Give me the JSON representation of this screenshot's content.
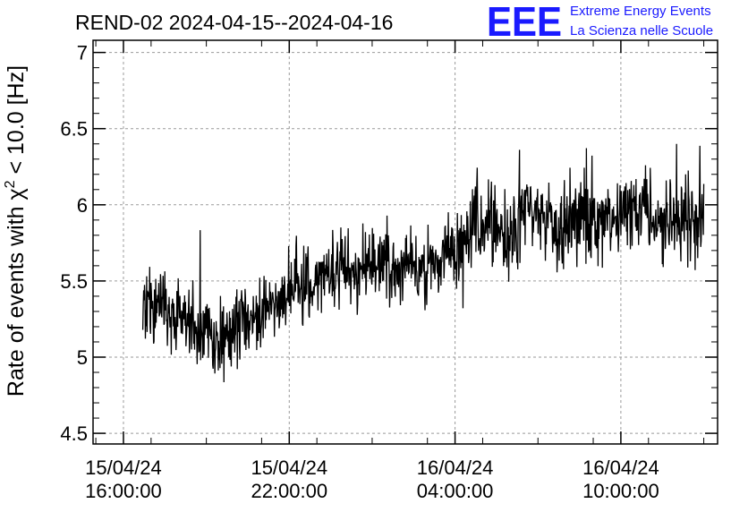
{
  "chart_data": {
    "type": "line",
    "title": "REND-02 2024-04-15--2024-04-16",
    "ylabel_parts": [
      "Rate of events with χ",
      "2",
      " < 10.0 [Hz]"
    ],
    "xlabel": "",
    "x_ticks": [
      {
        "t_hours": 0,
        "line1": "15/04/24",
        "line2": "16:00:00"
      },
      {
        "t_hours": 6,
        "line1": "15/04/24",
        "line2": "22:00:00"
      },
      {
        "t_hours": 12,
        "line1": "16/04/24",
        "line2": "04:00:00"
      },
      {
        "t_hours": 18,
        "line1": "16/04/24",
        "line2": "10:00:00"
      }
    ],
    "x_range_hours": [
      -1.1,
      21.5
    ],
    "y_ticks": [
      4.5,
      5,
      5.5,
      6,
      6.5,
      7
    ],
    "ylim": [
      4.43,
      7.08
    ],
    "grid": true,
    "series": [
      {
        "color": "#000000",
        "x_hours": [
          0.7,
          1.3,
          1.9,
          2.5,
          3.1,
          3.7,
          4.3,
          4.9,
          5.5,
          6.1,
          6.7,
          7.3,
          7.9,
          8.5,
          9.1,
          9.7,
          10.3,
          10.9,
          11.5,
          12.1,
          12.7,
          13.3,
          13.9,
          14.5,
          15.1,
          15.7,
          16.3,
          16.9,
          17.5,
          18.1,
          18.7,
          19.3,
          19.9,
          20.5,
          21.0
        ],
        "values": [
          5.3,
          5.35,
          5.3,
          5.2,
          5.15,
          5.1,
          5.25,
          5.3,
          5.4,
          5.45,
          5.45,
          5.55,
          5.6,
          5.55,
          5.6,
          5.55,
          5.65,
          5.55,
          5.65,
          5.7,
          5.85,
          5.85,
          5.8,
          5.95,
          5.95,
          5.85,
          5.9,
          5.85,
          5.9,
          5.95,
          6.0,
          5.85,
          5.9,
          5.9,
          5.85
        ],
        "spread": [
          0.25,
          0.25,
          0.25,
          0.25,
          0.25,
          0.25,
          0.25,
          0.25,
          0.25,
          0.25,
          0.25,
          0.25,
          0.25,
          0.25,
          0.25,
          0.25,
          0.25,
          0.25,
          0.25,
          0.25,
          0.28,
          0.28,
          0.28,
          0.28,
          0.28,
          0.28,
          0.28,
          0.28,
          0.28,
          0.28,
          0.28,
          0.28,
          0.28,
          0.28,
          0.28
        ]
      }
    ]
  },
  "logo": {
    "mark": "EEE",
    "line1": "Extreme Energy Events",
    "line2": "La Scienza nelle Scuole",
    "color": "#1a1aff"
  }
}
